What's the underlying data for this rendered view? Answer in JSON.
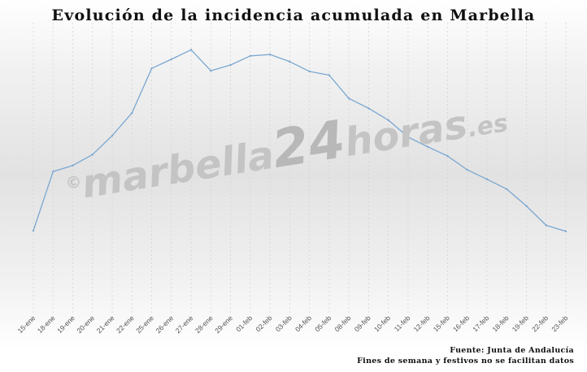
{
  "chart_data": {
    "type": "line",
    "title": "Evolución de la incidencia acumulada en Marbella",
    "categories": [
      "15-ene",
      "18-ene",
      "19-ene",
      "20-ene",
      "21-ene",
      "22-ene",
      "25-ene",
      "26-ene",
      "27-ene",
      "28-ene",
      "29-ene",
      "01-feb",
      "02-feb",
      "03-feb",
      "04-feb",
      "05-feb",
      "08-feb",
      "09-feb",
      "10-feb",
      "11-feb",
      "12-feb",
      "15-feb",
      "16-feb",
      "17-feb",
      "18-feb",
      "19-feb",
      "22-feb",
      "23-feb"
    ],
    "values": [
      245,
      420,
      438,
      470,
      526,
      593,
      725,
      752,
      780,
      718,
      735,
      762,
      766,
      745,
      716,
      705,
      636,
      607,
      572,
      522,
      493,
      466,
      425,
      397,
      368,
      318,
      261,
      243
    ],
    "ylim": [
      0,
      860
    ],
    "grid": true,
    "legend": "none",
    "line_color": "#7aa7d1"
  },
  "watermark": {
    "copy": "©",
    "part1": "marbella",
    "part2": "24",
    "part3": "horas",
    "part4": ".es"
  },
  "source_note": "Fuente: Junta de Andalucía",
  "footnote": "Fines de semana y festivos no se facilitan datos"
}
